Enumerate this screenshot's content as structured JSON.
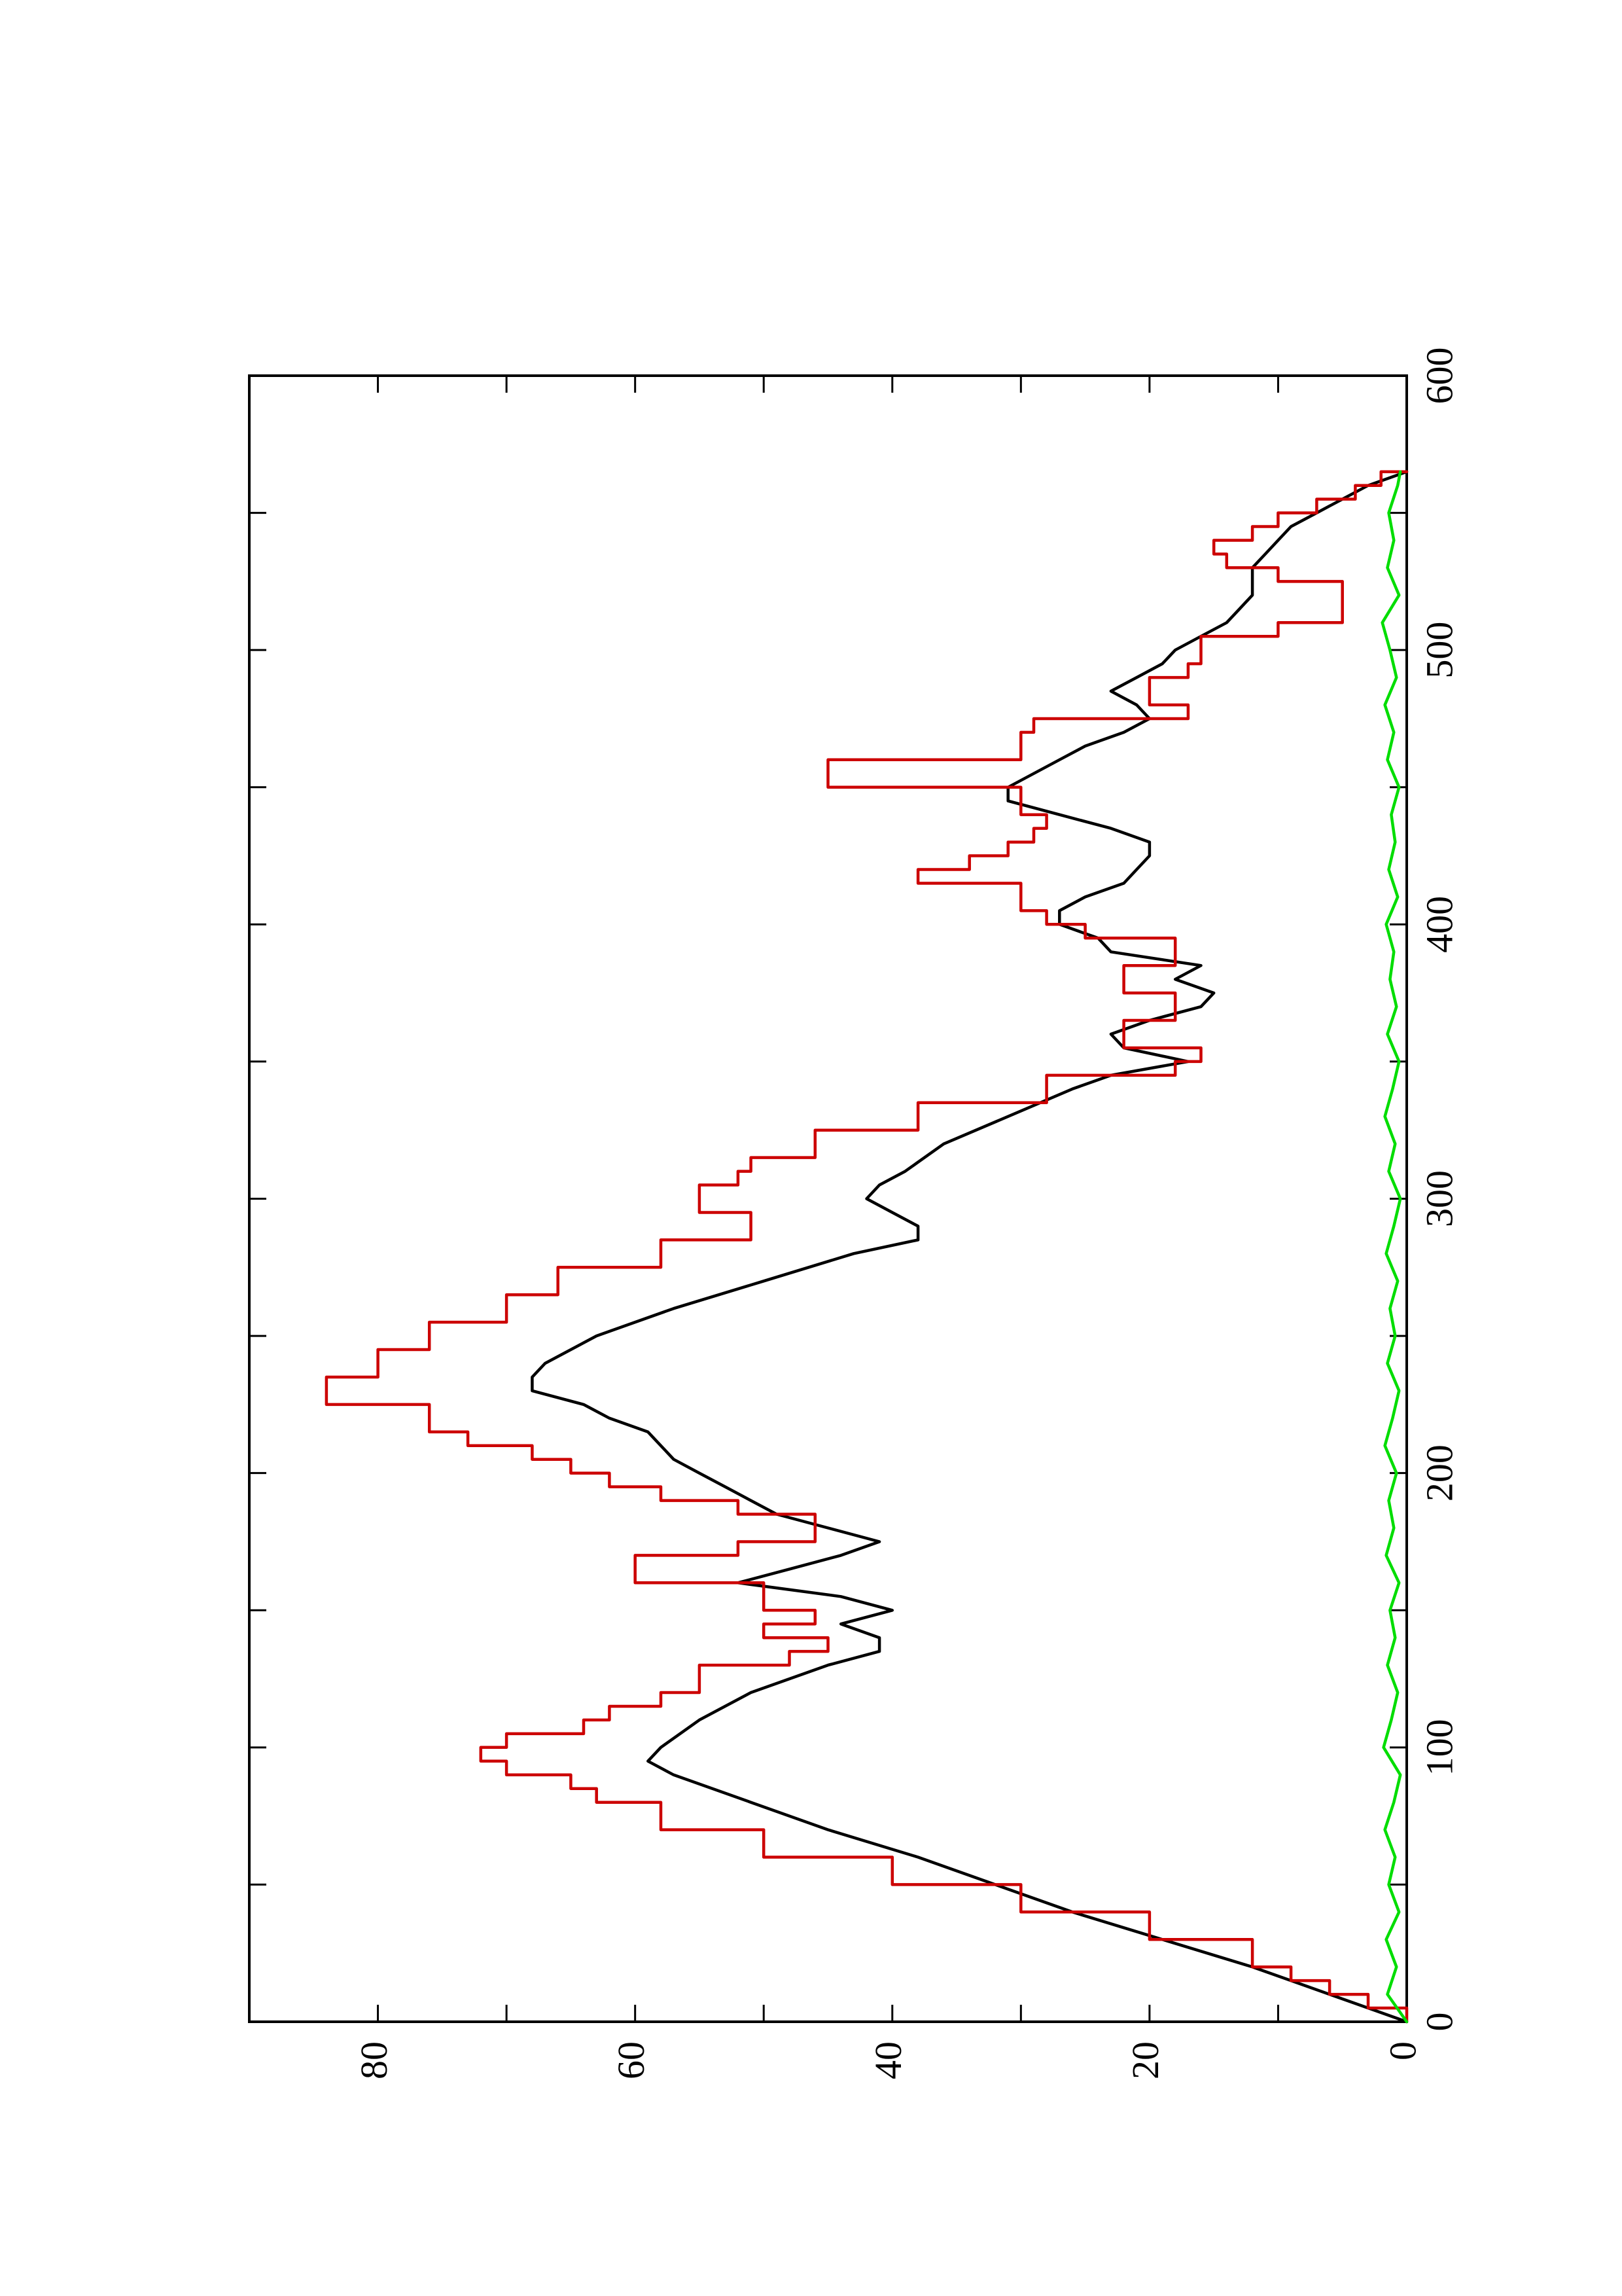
{
  "chart_data": {
    "type": "line",
    "orientation": "rotated-90-ccw",
    "title": "",
    "xlabel": "",
    "ylabel": "",
    "xlim": [
      0,
      600
    ],
    "ylim": [
      0,
      90
    ],
    "x_ticks": [
      0,
      100,
      200,
      300,
      400,
      500,
      600
    ],
    "y_ticks": [
      0,
      20,
      40,
      60,
      80
    ],
    "grid": false,
    "legend": "none",
    "series": [
      {
        "color": "#000000",
        "style": "line",
        "x": [
          0,
          5,
          10,
          15,
          20,
          30,
          40,
          50,
          60,
          70,
          80,
          90,
          95,
          100,
          110,
          120,
          130,
          135,
          140,
          145,
          150,
          155,
          160,
          165,
          170,
          175,
          180,
          185,
          190,
          195,
          200,
          205,
          210,
          215,
          220,
          225,
          230,
          235,
          240,
          250,
          260,
          270,
          280,
          285,
          290,
          295,
          300,
          305,
          310,
          320,
          330,
          340,
          345,
          350,
          355,
          360,
          365,
          370,
          375,
          380,
          385,
          390,
          395,
          400,
          405,
          410,
          415,
          420,
          425,
          430,
          435,
          440,
          445,
          450,
          455,
          460,
          465,
          470,
          475,
          480,
          485,
          490,
          495,
          500,
          505,
          510,
          515,
          520,
          525,
          530,
          535,
          540,
          545,
          550,
          555,
          560,
          565
        ],
        "y": [
          0,
          3,
          6,
          9,
          12,
          19,
          26,
          32,
          38,
          45,
          51,
          57,
          59,
          58,
          55,
          51,
          45,
          41,
          41,
          44,
          40,
          44,
          52,
          48,
          44,
          41,
          45,
          49,
          51,
          53,
          55,
          57,
          58,
          59,
          62,
          64,
          68,
          68,
          67,
          63,
          57,
          50,
          43,
          38,
          38,
          40,
          42,
          41,
          39,
          36,
          31,
          26,
          23,
          17,
          22,
          23,
          20,
          16,
          15,
          18,
          16,
          23,
          24,
          27,
          27,
          25,
          22,
          21,
          20,
          20,
          23,
          27,
          31,
          31,
          29,
          27,
          25,
          22,
          20,
          21,
          23,
          21,
          19,
          18,
          16,
          14,
          13,
          12,
          12,
          12,
          11,
          10,
          9,
          7,
          5,
          3,
          0
        ]
      },
      {
        "color": "#cc0000",
        "style": "step",
        "x": [
          0,
          5,
          10,
          15,
          20,
          30,
          40,
          50,
          60,
          70,
          80,
          85,
          90,
          95,
          100,
          105,
          110,
          115,
          120,
          130,
          135,
          140,
          145,
          150,
          160,
          170,
          175,
          185,
          190,
          195,
          200,
          205,
          210,
          215,
          225,
          235,
          245,
          255,
          265,
          275,
          285,
          290,
          295,
          300,
          305,
          310,
          315,
          325,
          335,
          345,
          350,
          355,
          360,
          365,
          370,
          375,
          380,
          385,
          390,
          395,
          400,
          405,
          415,
          420,
          425,
          430,
          435,
          440,
          450,
          460,
          470,
          475,
          480,
          485,
          490,
          495,
          500,
          505,
          510,
          520,
          525,
          530,
          535,
          540,
          545,
          550,
          555,
          560,
          565
        ],
        "y": [
          0,
          3,
          6,
          9,
          12,
          20,
          30,
          40,
          50,
          58,
          63,
          65,
          70,
          72,
          70,
          64,
          62,
          58,
          55,
          48,
          45,
          50,
          46,
          50,
          60,
          52,
          46,
          52,
          58,
          62,
          65,
          68,
          73,
          76,
          84,
          80,
          76,
          70,
          66,
          58,
          51,
          51,
          55,
          55,
          52,
          51,
          46,
          38,
          28,
          18,
          16,
          22,
          22,
          18,
          18,
          22,
          22,
          18,
          18,
          25,
          28,
          30,
          38,
          34,
          31,
          29,
          28,
          30,
          45,
          30,
          29,
          17,
          20,
          20,
          17,
          16,
          16,
          10,
          5,
          5,
          10,
          14,
          15,
          12,
          10,
          7,
          4,
          2,
          0
        ]
      },
      {
        "color": "#00dd00",
        "style": "line",
        "x": [
          0,
          10,
          20,
          30,
          40,
          50,
          60,
          70,
          80,
          90,
          100,
          110,
          120,
          130,
          140,
          150,
          160,
          170,
          180,
          190,
          200,
          210,
          220,
          230,
          240,
          250,
          260,
          270,
          280,
          290,
          300,
          310,
          320,
          330,
          340,
          350,
          360,
          370,
          380,
          390,
          400,
          410,
          420,
          430,
          440,
          450,
          460,
          470,
          480,
          490,
          500,
          510,
          520,
          530,
          540,
          550,
          560,
          565
        ],
        "y": [
          0,
          1.5,
          0.8,
          1.6,
          0.6,
          1.4,
          0.9,
          1.7,
          1.0,
          0.5,
          1.8,
          1.2,
          0.7,
          1.5,
          0.9,
          1.3,
          0.6,
          1.6,
          1.0,
          1.4,
          0.8,
          1.7,
          1.1,
          0.6,
          1.5,
          0.9,
          1.3,
          0.7,
          1.6,
          1.0,
          0.5,
          1.4,
          0.9,
          1.7,
          1.1,
          0.6,
          1.5,
          0.8,
          1.3,
          1.0,
          1.6,
          0.7,
          1.4,
          0.9,
          1.2,
          0.6,
          1.5,
          1.0,
          1.7,
          0.8,
          1.3,
          1.9,
          0.6,
          1.5,
          1.0,
          1.4,
          0.7,
          0.5
        ]
      }
    ]
  }
}
